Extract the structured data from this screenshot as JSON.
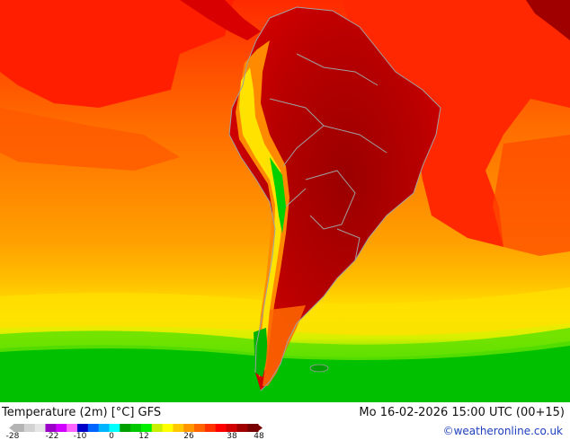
{
  "map": {
    "title": "Temperature (2m) [°C] GFS",
    "timestamp": "Mo 16-02-2026 15:00 UTC (00+15)",
    "credit": "©weatheronline.co.uk",
    "region": "South America",
    "legend": {
      "ticks": [
        "-28",
        "-22",
        "-10",
        "0",
        "12",
        "26",
        "38",
        "48"
      ],
      "colors": [
        "#b4b4b4",
        "#d2d2d2",
        "#e6e6e6",
        "#9b00c8",
        "#d200ff",
        "#ff64ff",
        "#0000c8",
        "#0064ff",
        "#00b4ff",
        "#00ffff",
        "#00a000",
        "#00c800",
        "#00f000",
        "#c8f000",
        "#ffff00",
        "#ffc800",
        "#ff9600",
        "#ff6400",
        "#ff3200",
        "#ff0000",
        "#d20000",
        "#a00000",
        "#780000"
      ]
    },
    "colors": {
      "ocean_warm": "#ff3a00",
      "ocean_mid": "#ff7a00",
      "ocean_cool": "#ffc800",
      "land_hot": "#b40000",
      "cold_south": "#00c800",
      "borders": "#a0a0a0"
    }
  }
}
